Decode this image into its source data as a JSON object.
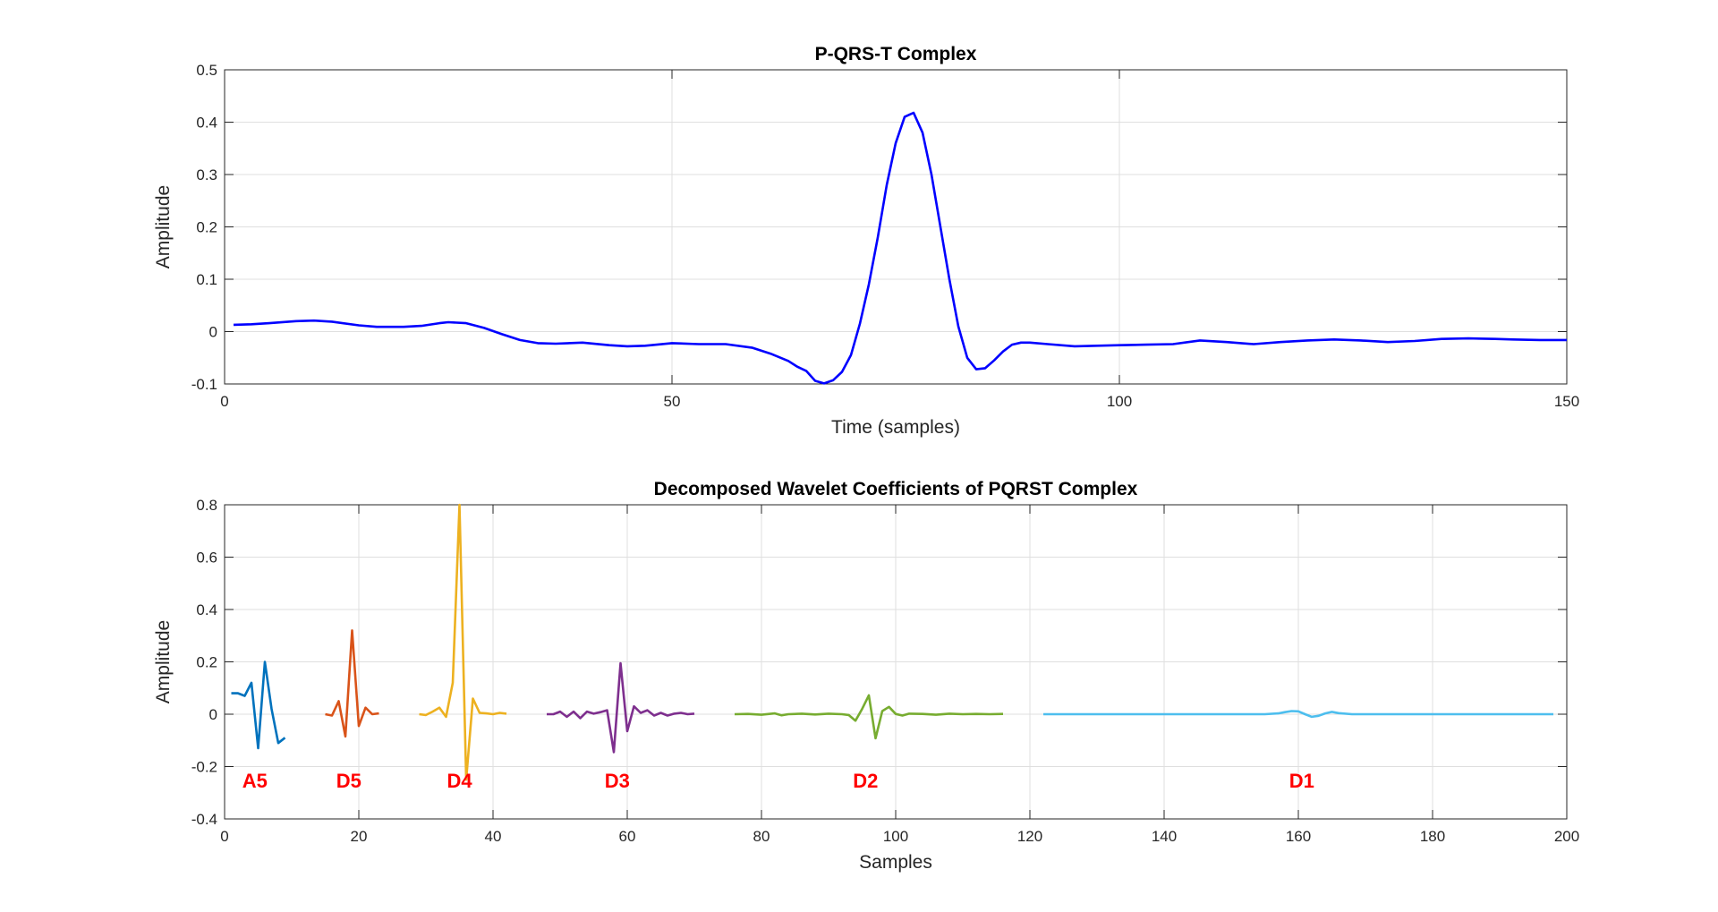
{
  "chart_data": [
    {
      "type": "line",
      "title": "P-QRS-T Complex",
      "xlabel": "Time (samples)",
      "ylabel": "Amplitude",
      "xlim": [
        0,
        150
      ],
      "ylim": [
        -0.1,
        0.5
      ],
      "xticks": [
        0,
        50,
        100,
        150
      ],
      "yticks": [
        -0.1,
        0,
        0.1,
        0.2,
        0.3,
        0.4,
        0.5
      ],
      "xtick_labels": [
        "0",
        "50",
        "100",
        "150"
      ],
      "ytick_labels": [
        "-0.1",
        "0",
        "0.1",
        "0.2",
        "0.3",
        "0.4",
        "0.5"
      ],
      "grid": true,
      "series": [
        {
          "color": "#0000ff",
          "x": [
            1,
            3,
            5,
            8,
            10,
            12,
            15,
            17,
            20,
            22,
            24,
            25,
            27,
            29,
            31,
            33,
            35,
            37,
            40,
            43,
            45,
            47,
            50,
            53,
            56,
            59,
            61,
            63,
            64,
            65,
            66,
            67,
            68,
            69,
            70,
            71,
            72,
            73,
            74,
            75,
            76,
            77,
            78,
            79,
            80,
            81,
            82,
            83,
            84,
            85,
            86,
            87,
            88,
            89,
            90,
            92,
            95,
            100,
            103,
            106,
            109,
            112,
            115,
            118,
            121,
            124,
            127,
            130,
            133,
            136,
            139,
            142,
            144,
            147,
            150
          ],
          "y": [
            0.013,
            0.014,
            0.016,
            0.02,
            0.021,
            0.019,
            0.012,
            0.009,
            0.009,
            0.011,
            0.016,
            0.018,
            0.016,
            0.007,
            -0.005,
            -0.016,
            -0.022,
            -0.023,
            -0.021,
            -0.026,
            -0.028,
            -0.027,
            -0.022,
            -0.024,
            -0.024,
            -0.031,
            -0.042,
            -0.056,
            -0.067,
            -0.075,
            -0.094,
            -0.099,
            -0.093,
            -0.077,
            -0.045,
            0.015,
            0.09,
            0.18,
            0.28,
            0.36,
            0.41,
            0.418,
            0.38,
            0.3,
            0.2,
            0.1,
            0.01,
            -0.05,
            -0.072,
            -0.07,
            -0.055,
            -0.038,
            -0.025,
            -0.021,
            -0.021,
            -0.024,
            -0.028,
            -0.026,
            -0.025,
            -0.024,
            -0.017,
            -0.02,
            -0.024,
            -0.02,
            -0.017,
            -0.015,
            -0.017,
            -0.02,
            -0.018,
            -0.014,
            -0.013,
            -0.014,
            -0.015,
            -0.016,
            -0.016
          ]
        }
      ]
    },
    {
      "type": "line",
      "title": "Decomposed Wavelet Coefficients of PQRST Complex",
      "xlabel": "Samples",
      "ylabel": "Amplitude",
      "xlim": [
        0,
        200
      ],
      "ylim": [
        -0.4,
        0.8
      ],
      "xticks": [
        0,
        20,
        40,
        60,
        80,
        100,
        120,
        140,
        160,
        180,
        200
      ],
      "yticks": [
        -0.4,
        -0.2,
        0,
        0.2,
        0.4,
        0.6,
        0.8
      ],
      "xtick_labels": [
        "0",
        "20",
        "40",
        "60",
        "80",
        "100",
        "120",
        "140",
        "160",
        "180",
        "200"
      ],
      "ytick_labels": [
        "-0.4",
        "-0.2",
        "0",
        "0.2",
        "0.4",
        "0.6",
        "0.8"
      ],
      "grid": true,
      "series": [
        {
          "label": "A5",
          "label_x": 4.5,
          "label_y": -0.28,
          "color": "#0072bd",
          "x": [
            1,
            2,
            3,
            4,
            5,
            6,
            7,
            8,
            9
          ],
          "y": [
            0.08,
            0.08,
            0.07,
            0.12,
            -0.13,
            0.2,
            0.02,
            -0.11,
            -0.09
          ]
        },
        {
          "label": "D5",
          "label_x": 18.5,
          "label_y": -0.28,
          "color": "#d95319",
          "x": [
            15,
            16,
            17,
            18,
            19,
            20,
            21,
            22,
            23
          ],
          "y": [
            0,
            -0.005,
            0.05,
            -0.085,
            0.32,
            -0.045,
            0.025,
            0,
            0.003
          ]
        },
        {
          "label": "D4",
          "label_x": 35,
          "label_y": -0.28,
          "color": "#edb120",
          "x": [
            29,
            30,
            31,
            32,
            33,
            34,
            35,
            36,
            37,
            38,
            39,
            40,
            41,
            42
          ],
          "y": [
            0,
            -0.003,
            0.01,
            0.025,
            -0.01,
            0.12,
            0.8,
            -0.25,
            0.06,
            0.005,
            0.003,
            0,
            0.005,
            0.002
          ]
        },
        {
          "label": "D3",
          "label_x": 58.5,
          "label_y": -0.28,
          "color": "#7e2f8e",
          "x": [
            48,
            49,
            50,
            51,
            52,
            53,
            54,
            55,
            56,
            57,
            58,
            59,
            60,
            61,
            62,
            63,
            64,
            65,
            66,
            67,
            68,
            69,
            70
          ],
          "y": [
            0,
            0,
            0.01,
            -0.01,
            0.01,
            -0.015,
            0.01,
            0.002,
            0.008,
            0.015,
            -0.145,
            0.195,
            -0.065,
            0.03,
            0.005,
            0.015,
            -0.005,
            0.005,
            -0.005,
            0.002,
            0.005,
            0,
            0.002
          ]
        },
        {
          "label": "D2",
          "label_x": 95.5,
          "label_y": -0.28,
          "color": "#77ac30",
          "x": [
            76,
            78,
            80,
            82,
            83,
            84,
            86,
            88,
            90,
            92,
            93,
            94,
            95,
            96,
            97,
            98,
            99,
            100,
            101,
            102,
            104,
            106,
            108,
            110,
            112,
            114,
            116
          ],
          "y": [
            0,
            0.001,
            -0.002,
            0.003,
            -0.004,
            0,
            0.002,
            -0.001,
            0.002,
            0,
            -0.003,
            -0.025,
            0.02,
            0.072,
            -0.092,
            0.012,
            0.028,
            0.001,
            -0.005,
            0.002,
            0.001,
            -0.002,
            0.002,
            0,
            0.001,
            0,
            0.001
          ]
        },
        {
          "label": "D1",
          "label_x": 160.5,
          "label_y": -0.28,
          "color": "#4dbeee",
          "x": [
            122,
            130,
            140,
            150,
            155,
            157,
            158,
            159,
            160,
            161,
            162,
            163,
            164,
            165,
            166,
            168,
            170,
            180,
            190,
            198
          ],
          "y": [
            0,
            0,
            0,
            0,
            0,
            0.003,
            0.008,
            0.012,
            0.011,
            0,
            -0.01,
            -0.006,
            0.003,
            0.009,
            0.004,
            0,
            0,
            0,
            0,
            0
          ]
        }
      ]
    }
  ]
}
